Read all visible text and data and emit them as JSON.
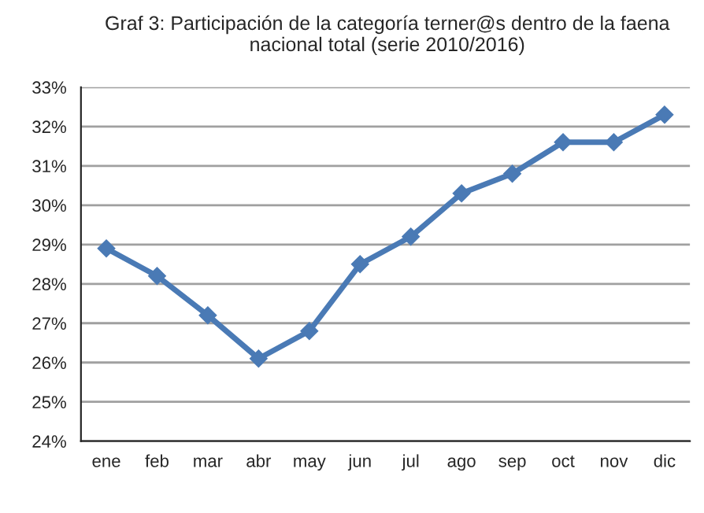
{
  "chart_data": {
    "type": "line",
    "title": "Graf 3: Participación de la categoría terner@s dentro de la faena nacional total (serie 2010/2016)",
    "categories": [
      "ene",
      "feb",
      "mar",
      "abr",
      "may",
      "jun",
      "jul",
      "ago",
      "sep",
      "oct",
      "nov",
      "dic"
    ],
    "series": [
      {
        "color": "#4a7ab5",
        "values": [
          28.9,
          28.2,
          27.2,
          26.1,
          26.8,
          28.5,
          29.2,
          30.3,
          30.8,
          31.6,
          31.6,
          32.3
        ]
      }
    ],
    "ylim": [
      24,
      33
    ],
    "yticks": [
      {
        "value": 24,
        "label": "24%"
      },
      {
        "value": 25,
        "label": "25%"
      },
      {
        "value": 26,
        "label": "26%"
      },
      {
        "value": 27,
        "label": "27%"
      },
      {
        "value": 28,
        "label": "28%"
      },
      {
        "value": 29,
        "label": "29%"
      },
      {
        "value": 30,
        "label": "30%"
      },
      {
        "value": 31,
        "label": "31%"
      },
      {
        "value": 32,
        "label": "32%"
      },
      {
        "value": 33,
        "label": "33%"
      }
    ],
    "grid": "y",
    "marker": "diamond",
    "line_style": "solid",
    "legend": false
  }
}
